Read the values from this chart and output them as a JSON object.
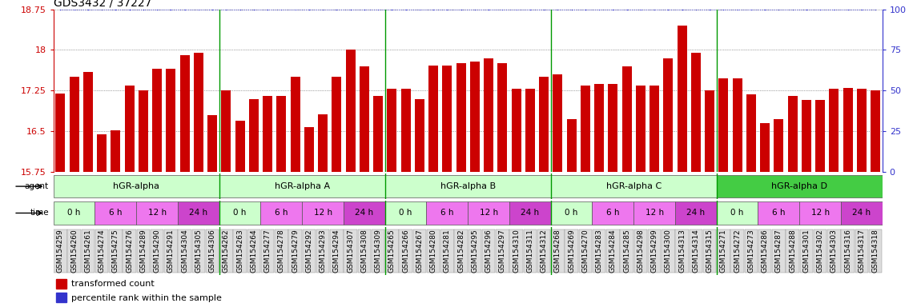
{
  "title": "GDS3432 / 37227",
  "xlabels": [
    "GSM154259",
    "GSM154260",
    "GSM154261",
    "GSM154274",
    "GSM154275",
    "GSM154276",
    "GSM154289",
    "GSM154290",
    "GSM154291",
    "GSM154304",
    "GSM154305",
    "GSM154306",
    "GSM154262",
    "GSM154263",
    "GSM154264",
    "GSM154277",
    "GSM154278",
    "GSM154279",
    "GSM154292",
    "GSM154293",
    "GSM154294",
    "GSM154307",
    "GSM154308",
    "GSM154309",
    "GSM154265",
    "GSM154266",
    "GSM154267",
    "GSM154280",
    "GSM154281",
    "GSM154282",
    "GSM154295",
    "GSM154296",
    "GSM154297",
    "GSM154310",
    "GSM154311",
    "GSM154312",
    "GSM154268",
    "GSM154269",
    "GSM154270",
    "GSM154283",
    "GSM154284",
    "GSM154285",
    "GSM154298",
    "GSM154299",
    "GSM154300",
    "GSM154313",
    "GSM154314",
    "GSM154315",
    "GSM154271",
    "GSM154272",
    "GSM154273",
    "GSM154286",
    "GSM154287",
    "GSM154288",
    "GSM154301",
    "GSM154302",
    "GSM154303",
    "GSM154316",
    "GSM154317",
    "GSM154318"
  ],
  "values": [
    17.2,
    17.5,
    17.6,
    16.45,
    16.52,
    17.35,
    17.25,
    17.65,
    17.65,
    17.9,
    17.95,
    16.8,
    17.25,
    16.7,
    17.1,
    17.15,
    17.15,
    17.5,
    16.58,
    16.82,
    17.5,
    18.0,
    17.7,
    17.15,
    17.28,
    17.28,
    17.1,
    17.72,
    17.72,
    17.75,
    17.78,
    17.85,
    17.75,
    17.28,
    17.28,
    17.5,
    17.55,
    16.72,
    17.35,
    17.38,
    17.38,
    17.7,
    17.35,
    17.35,
    17.85,
    18.45,
    17.95,
    17.25,
    17.48,
    17.48,
    17.18,
    16.65,
    16.72,
    17.15,
    17.08,
    17.08,
    17.28,
    17.3,
    17.28,
    17.25
  ],
  "ylim": [
    15.75,
    18.75
  ],
  "yticks": [
    15.75,
    16.5,
    17.25,
    18.0,
    18.75
  ],
  "ytick_labels": [
    "15.75",
    "16.5",
    "17.25",
    "18",
    "18.75"
  ],
  "right_yticks": [
    0,
    25,
    50,
    75,
    100
  ],
  "right_ytick_labels": [
    "0",
    "25",
    "50",
    "75",
    "100"
  ],
  "bar_color": "#cc0000",
  "line_color": "#3333cc",
  "grid_color": "#555555",
  "agent_groups": [
    {
      "label": "hGR-alpha",
      "start": 0,
      "end": 12,
      "color": "#ccffcc"
    },
    {
      "label": "hGR-alpha A",
      "start": 12,
      "end": 24,
      "color": "#ccffcc"
    },
    {
      "label": "hGR-alpha B",
      "start": 24,
      "end": 36,
      "color": "#ccffcc"
    },
    {
      "label": "hGR-alpha C",
      "start": 36,
      "end": 48,
      "color": "#ccffcc"
    },
    {
      "label": "hGR-alpha D",
      "start": 48,
      "end": 60,
      "color": "#44cc44"
    }
  ],
  "group_boundaries": [
    12,
    24,
    36,
    48
  ],
  "time_colors": [
    "#ccffcc",
    "#ee77ee",
    "#ee77ee",
    "#cc44cc"
  ],
  "time_labels": [
    "0 h",
    "6 h",
    "12 h",
    "24 h"
  ],
  "legend_items": [
    {
      "color": "#cc0000",
      "label": "transformed count"
    },
    {
      "color": "#3333cc",
      "label": "percentile rank within the sample"
    }
  ],
  "title_fontsize": 10,
  "label_fontsize": 6.5,
  "bar_width": 0.7,
  "background_color": "#ffffff",
  "xtick_bg": "#dddddd"
}
